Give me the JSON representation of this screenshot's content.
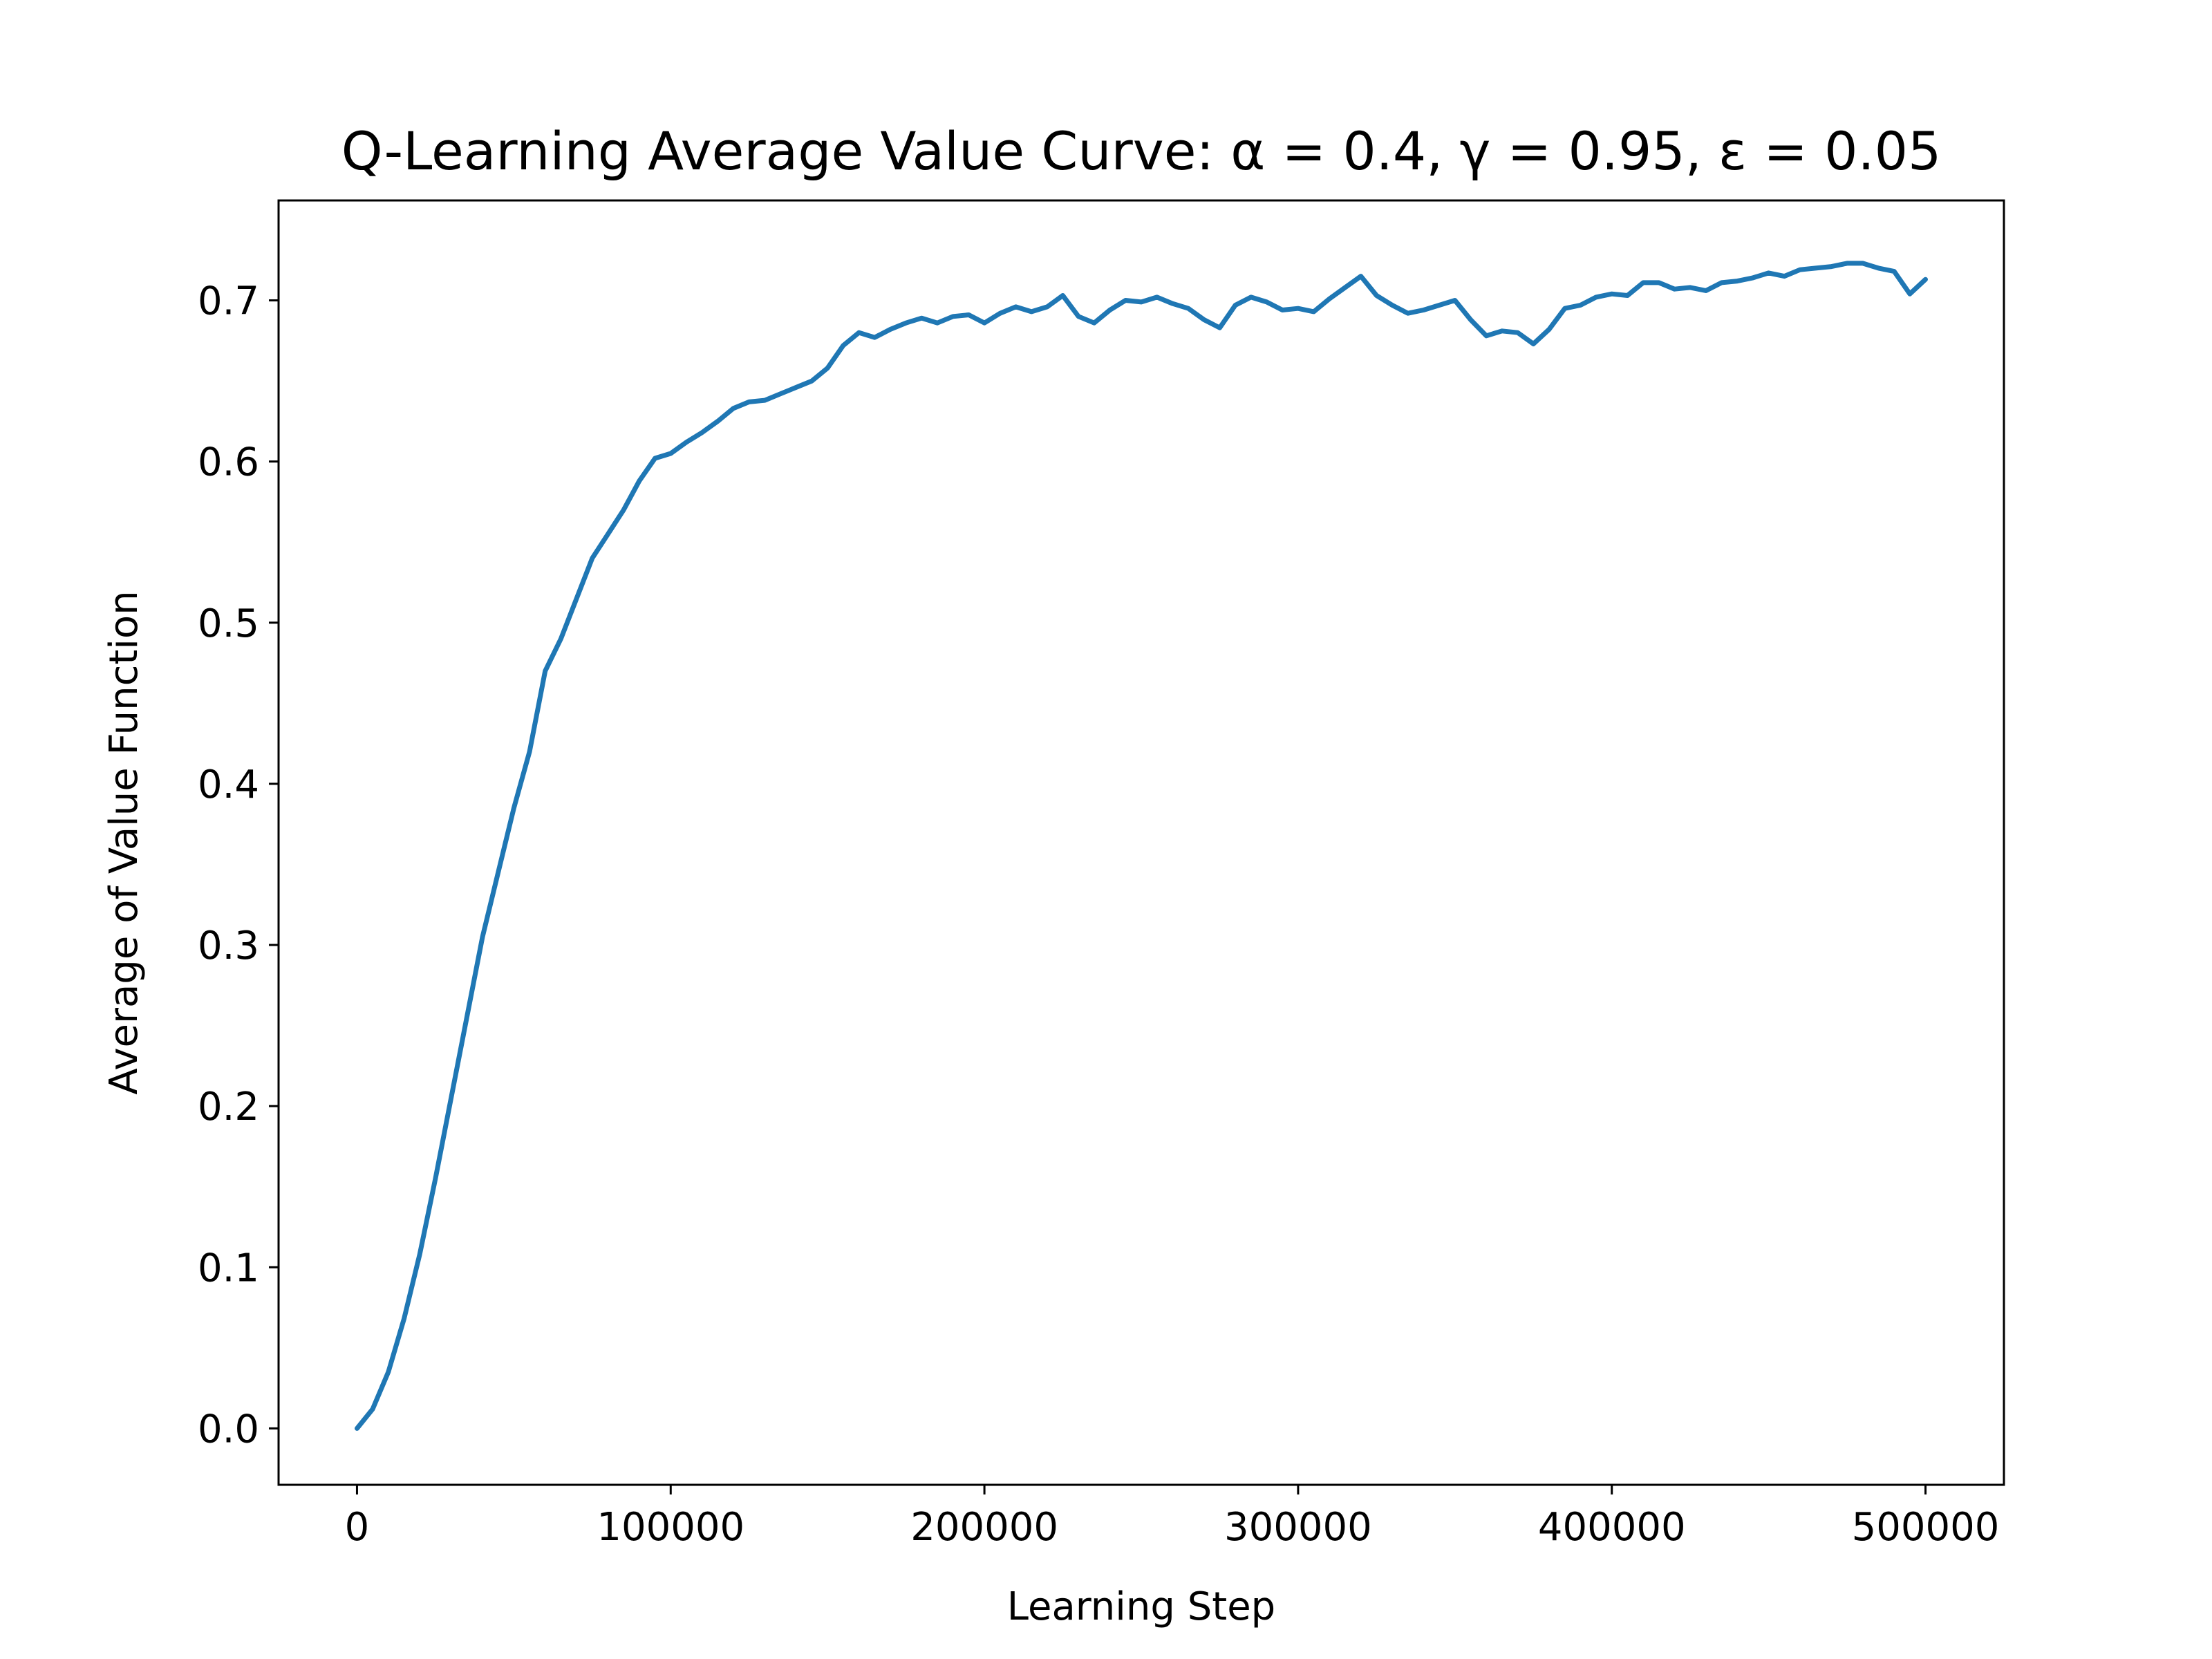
{
  "chart_data": {
    "type": "line",
    "title": "Q-Learning Average Value Curve: α = 0.4, γ = 0.95, ε = 0.05",
    "xlabel": "Learning Step",
    "ylabel": "Average of Value Function",
    "xlim": [
      -25000,
      525000
    ],
    "ylim": [
      -0.035,
      0.762
    ],
    "xticks": [
      0,
      100000,
      200000,
      300000,
      400000,
      500000
    ],
    "xtick_labels": [
      "0",
      "100000",
      "200000",
      "300000",
      "400000",
      "500000"
    ],
    "yticks": [
      0.0,
      0.1,
      0.2,
      0.3,
      0.4,
      0.5,
      0.6,
      0.7
    ],
    "ytick_labels": [
      "0.0",
      "0.1",
      "0.2",
      "0.3",
      "0.4",
      "0.5",
      "0.6",
      "0.7"
    ],
    "grid": false,
    "legend": "none",
    "colors": {
      "line": "#1f77b4",
      "axes": "#000000",
      "background": "#ffffff"
    },
    "series": [
      {
        "x": [
          0,
          5000,
          10000,
          15000,
          20000,
          25000,
          30000,
          35000,
          40000,
          45000,
          50000,
          55000,
          60000,
          65000,
          70000,
          75000,
          80000,
          85000,
          90000,
          95000,
          100000,
          105000,
          110000,
          115000,
          120000,
          125000,
          130000,
          135000,
          140000,
          145000,
          150000,
          155000,
          160000,
          165000,
          170000,
          175000,
          180000,
          185000,
          190000,
          195000,
          200000,
          205000,
          210000,
          215000,
          220000,
          225000,
          230000,
          235000,
          240000,
          245000,
          250000,
          255000,
          260000,
          265000,
          270000,
          275000,
          280000,
          285000,
          290000,
          295000,
          300000,
          305000,
          310000,
          315000,
          320000,
          325000,
          330000,
          335000,
          340000,
          345000,
          350000,
          355000,
          360000,
          365000,
          370000,
          375000,
          380000,
          385000,
          390000,
          395000,
          400000,
          405000,
          410000,
          415000,
          420000,
          425000,
          430000,
          435000,
          440000,
          445000,
          450000,
          455000,
          460000,
          465000,
          470000,
          475000,
          480000,
          485000,
          490000,
          495000,
          500000
        ],
        "y": [
          0.0,
          0.012,
          0.035,
          0.068,
          0.108,
          0.155,
          0.205,
          0.255,
          0.305,
          0.345,
          0.385,
          0.42,
          0.47,
          0.49,
          0.515,
          0.54,
          0.555,
          0.57,
          0.588,
          0.602,
          0.605,
          0.612,
          0.618,
          0.625,
          0.633,
          0.637,
          0.638,
          0.642,
          0.646,
          0.65,
          0.658,
          0.672,
          0.68,
          0.677,
          0.682,
          0.686,
          0.689,
          0.686,
          0.69,
          0.691,
          0.686,
          0.692,
          0.696,
          0.693,
          0.696,
          0.703,
          0.69,
          0.686,
          0.694,
          0.7,
          0.699,
          0.702,
          0.698,
          0.695,
          0.688,
          0.683,
          0.697,
          0.702,
          0.699,
          0.694,
          0.695,
          0.693,
          0.701,
          0.708,
          0.715,
          0.703,
          0.697,
          0.692,
          0.694,
          0.697,
          0.7,
          0.688,
          0.678,
          0.681,
          0.68,
          0.673,
          0.682,
          0.695,
          0.697,
          0.702,
          0.704,
          0.703,
          0.711,
          0.711,
          0.707,
          0.708,
          0.706,
          0.711,
          0.712,
          0.714,
          0.717,
          0.715,
          0.719,
          0.72,
          0.721,
          0.723,
          0.723,
          0.72,
          0.718,
          0.704,
          0.713
        ]
      }
    ]
  }
}
